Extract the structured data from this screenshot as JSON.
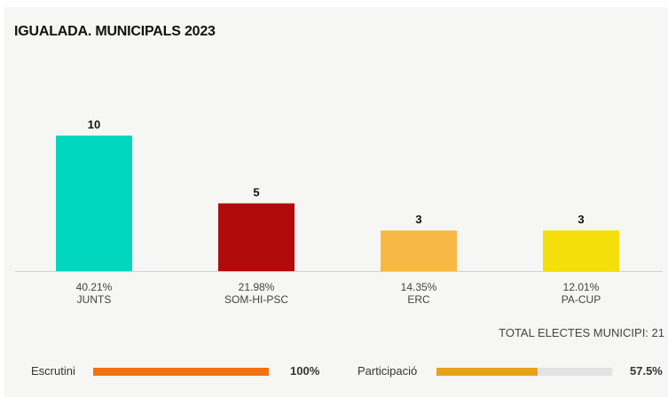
{
  "title": "IGUALADA. MUNICIPALS 2023",
  "chart_data": {
    "type": "bar",
    "title": "IGUALADA. MUNICIPALS 2023",
    "categories": [
      "JUNTS",
      "SOM-HI-PSC",
      "ERC",
      "PA-CUP"
    ],
    "values": [
      10,
      5,
      3,
      3
    ],
    "percentages": [
      "40.21%",
      "21.98%",
      "14.35%",
      "12.01%"
    ],
    "colors": [
      "#00d6be",
      "#b00a0a",
      "#f8b944",
      "#f5df0b"
    ],
    "ylim": [
      0,
      10
    ],
    "xlabel": "",
    "ylabel": "",
    "grid": false
  },
  "total_label": "TOTAL ELECTES MUNICIPI: 21",
  "stats": {
    "escrutini": {
      "label": "Escrutini",
      "value": "100%",
      "fraction": 1.0,
      "color": "#f0730f"
    },
    "participacio": {
      "label": "Participació",
      "value": "57.5%",
      "fraction": 0.575,
      "color": "#e6a319"
    }
  }
}
